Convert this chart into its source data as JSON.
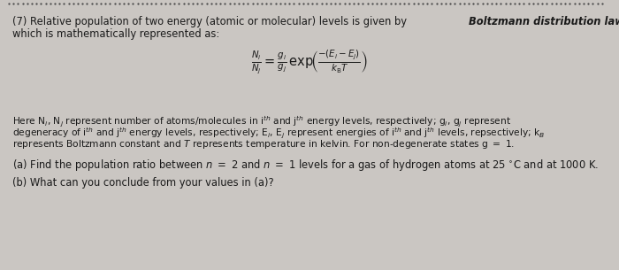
{
  "bg_color": "#cac6c2",
  "top_dots_color": "#444444",
  "title_normal": "(7) Relative population of two energy (atomic or molecular) levels is given by ",
  "title_bold_italic": "Boltzmann distribution law",
  "title_line2": "which is mathematically represented as:",
  "formula": "$\\frac{N_i}{N_j} = \\frac{g_i}{g_j}\\,\\mathrm{exp}\\!\\left(\\frac{-(E_i - E_j)}{k_{\\mathrm{B}}T}\\right)$",
  "expl1": "Here N$_i$, N$_j$ represent number of atoms/molecules in i$^{th}$ and j$^{th}$ energy levels, respectively; g$_i$, g$_j$ represent",
  "expl2": "degeneracy of i$^{th}$ and j$^{th}$ energy levels, respectively; E$_i$, E$_j$ represent energies of i$^{th}$ and j$^{th}$ levels, repsectively; k$_B$",
  "expl3": "represents Boltzmann constant and $T$ represents temperature in kelvin. For non-degenerate states g $=$ 1.",
  "part_a": "(a) Find the population ratio between $n$ $=$ 2 and $n$ $=$ 1 levels for a gas of hydrogen atoms at 25 $^{\\circ}$C and at 1000 K.",
  "part_b": "(b) What can you conclude from your values in (a)?",
  "font_size_main": 8.3,
  "font_size_expl": 7.7,
  "font_size_formula": 10.5
}
